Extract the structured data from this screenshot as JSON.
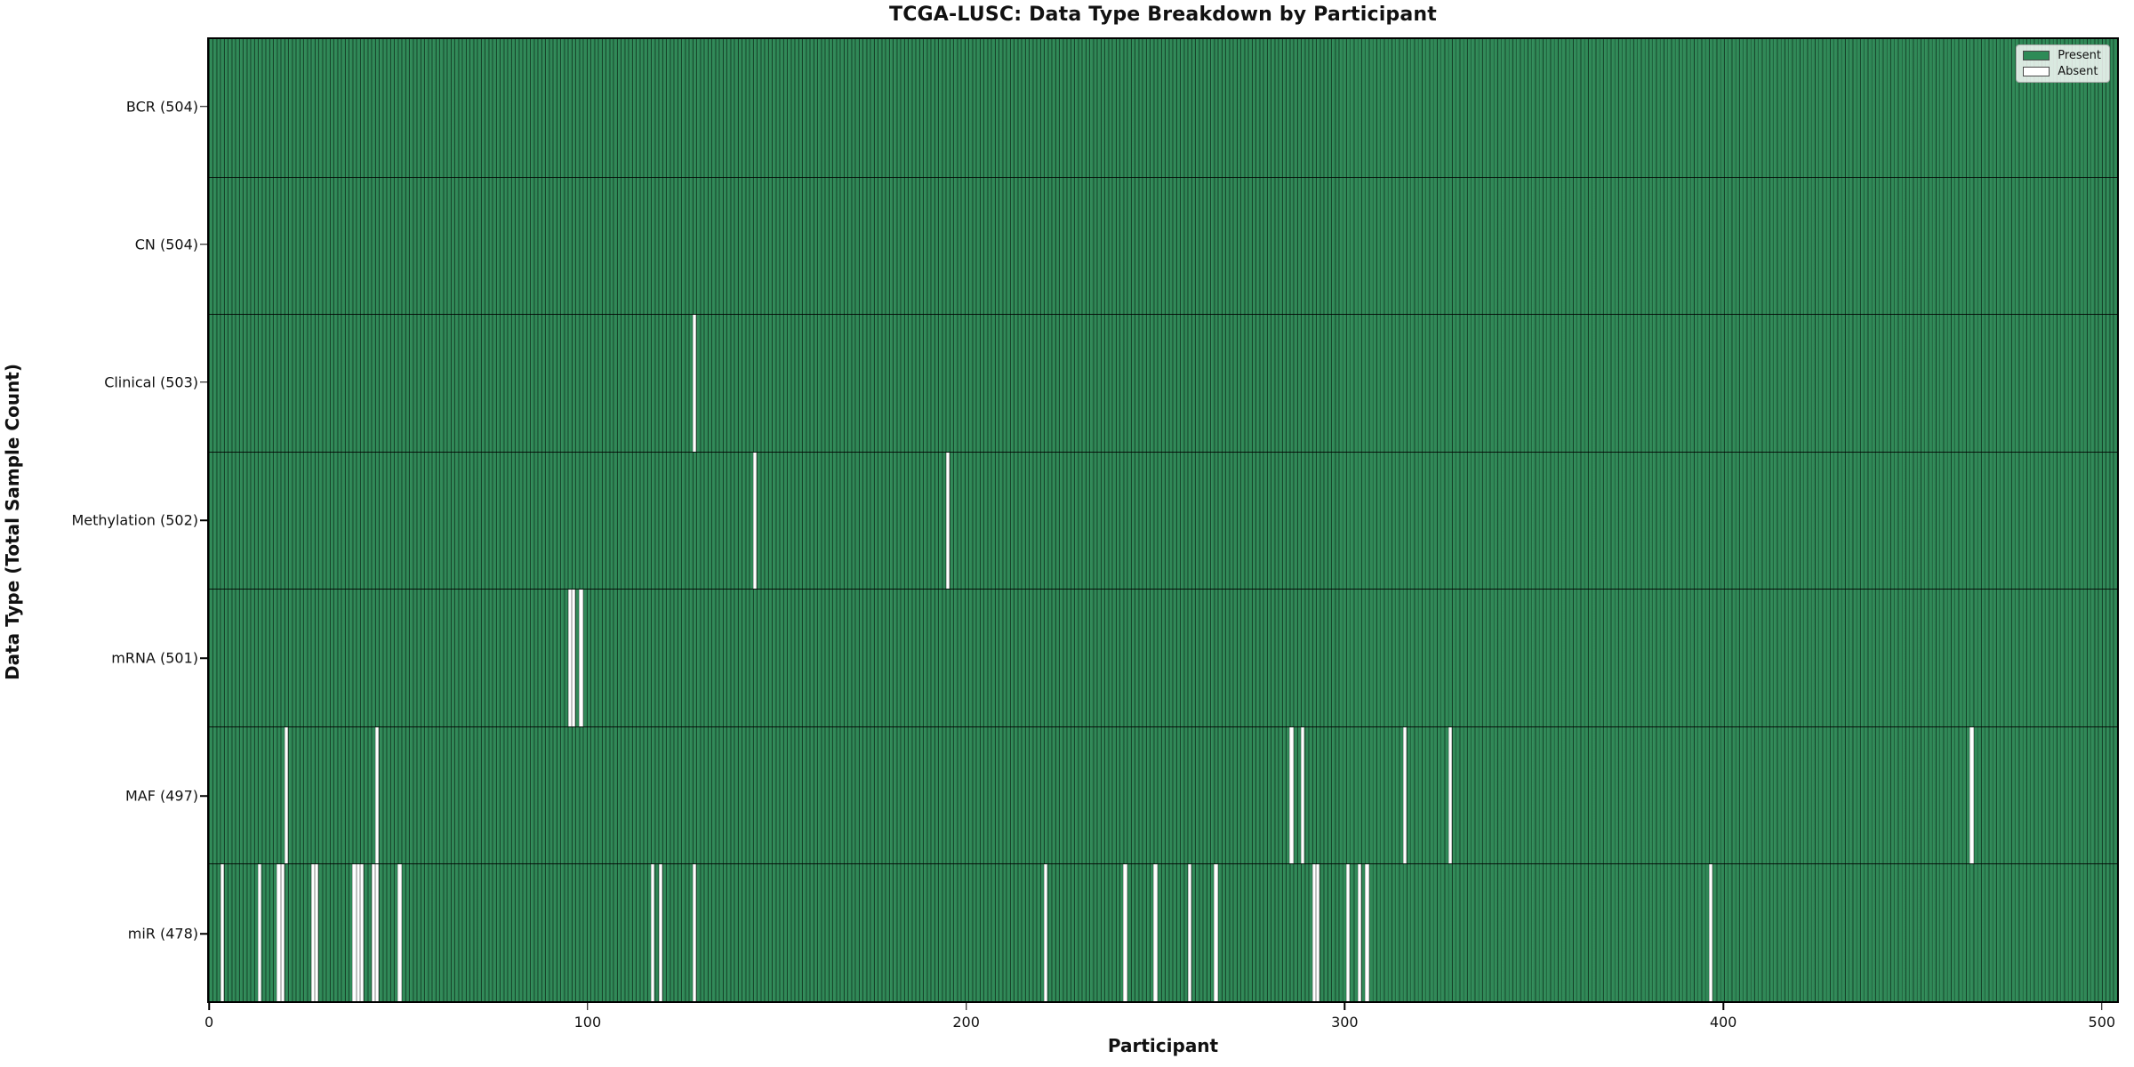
{
  "title": "TCGA-LUSC: Data Type Breakdown by Participant",
  "axes": {
    "x_label": "Participant",
    "y_label": "Data Type (Total Sample Count)",
    "x_tick_labels": [
      "0",
      "100",
      "200",
      "300",
      "400",
      "500"
    ]
  },
  "legend": {
    "position": "upper right",
    "present_label": "Present",
    "absent_label": "Absent"
  },
  "colors": {
    "present": "#2E8B57",
    "absent": "#FFFFFF",
    "background": "#FFFFFF",
    "frame": "#000000"
  },
  "chart_data": {
    "type": "heatmap",
    "title": "TCGA-LUSC: Data Type Breakdown by Participant",
    "xlabel": "Participant",
    "ylabel": "Data Type (Total Sample Count)",
    "x_ticks": [
      0,
      100,
      200,
      300,
      400,
      500
    ],
    "xlim": [
      -0.5,
      504.5
    ],
    "total_participants": 504,
    "states": [
      "Present",
      "Absent"
    ],
    "grid": false,
    "legend_position": "upper right",
    "rows": [
      {
        "label": "BCR (504)",
        "data_type": "BCR",
        "present_count": 504,
        "absent_participants": []
      },
      {
        "label": "CN (504)",
        "data_type": "CN",
        "present_count": 504,
        "absent_participants": []
      },
      {
        "label": "Clinical (503)",
        "data_type": "Clinical",
        "present_count": 503,
        "absent_participants": [
          128
        ]
      },
      {
        "label": "Methylation (502)",
        "data_type": "Methylation",
        "present_count": 502,
        "absent_participants": [
          144,
          195
        ]
      },
      {
        "label": "mRNA (501)",
        "data_type": "mRNA",
        "present_count": 501,
        "absent_participants": [
          95,
          96,
          98
        ]
      },
      {
        "label": "MAF (497)",
        "data_type": "MAF",
        "present_count": 497,
        "absent_participants": [
          20,
          44,
          286,
          289,
          316,
          328,
          466
        ]
      },
      {
        "label": "miR (478)",
        "data_type": "miR",
        "present_count": 478,
        "absent_participants": [
          3,
          13,
          18,
          19,
          27,
          28,
          38,
          39,
          40,
          43,
          44,
          50,
          117,
          119,
          128,
          221,
          242,
          250,
          259,
          266,
          292,
          293,
          301,
          304,
          306,
          397
        ]
      }
    ]
  }
}
